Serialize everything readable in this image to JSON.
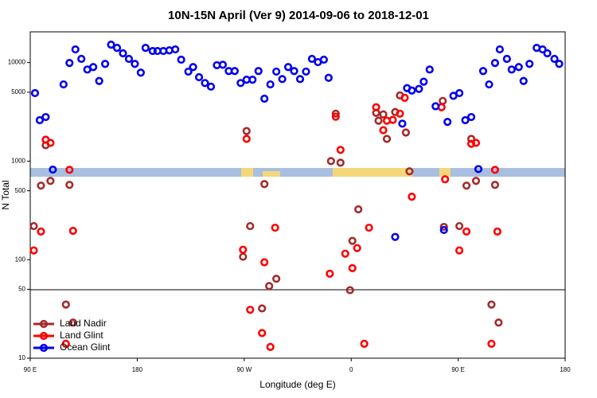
{
  "chart_data": {
    "type": "scatter",
    "title": "10N-15N April (Ver 9)   2014-09-06 to 2018-12-01",
    "xlabel": "Longitude (deg E)",
    "ylabel": "N Total",
    "log_y": true,
    "legend": "lower left",
    "xlim": [
      90,
      540
    ],
    "ylim": [
      10,
      20500
    ],
    "xticks": [
      {
        "value": 90,
        "label": "90 E"
      },
      180,
      {
        "value": 270,
        "label": "90 W"
      },
      {
        "value": 360,
        "label": "0"
      },
      {
        "value": 450,
        "label": "90 E"
      },
      {
        "value": 540,
        "label": "180"
      }
    ],
    "yticks": [
      10,
      50,
      100,
      500,
      1000,
      5000,
      10000
    ],
    "series": [
      {
        "name": "Land Nadir",
        "color": "#a52a2a",
        "x": [
          93,
          99,
          103,
          107,
          120,
          123,
          126,
          272,
          269,
          275,
          285,
          287,
          291,
          297,
          343,
          347,
          351,
          359,
          361,
          366,
          381,
          383,
          387,
          390,
          397,
          401,
          406,
          409,
          437,
          438,
          451,
          457,
          461,
          465,
          478,
          481,
          484
        ],
        "values": [
          219,
          564,
          1450,
          630,
          35,
          574,
          23,
          2020,
          107,
          219,
          32,
          585,
          54,
          64,
          1000,
          3030,
          964,
          49,
          155,
          324,
          3090,
          2570,
          2980,
          1680,
          3150,
          4640,
          1950,
          787,
          4080,
          215,
          219,
          564,
          1680,
          630,
          35,
          574,
          23
        ]
      },
      {
        "name": "Land Glint",
        "color": "#ff0000",
        "x": [
          93,
          99,
          103,
          107,
          120,
          123,
          126,
          272,
          269,
          275,
          285,
          287,
          292,
          296,
          342,
          347,
          351,
          355,
          361,
          365,
          371,
          375,
          381,
          387,
          390,
          395,
          401,
          405,
          411,
          436,
          439,
          451,
          457,
          461,
          465,
          478,
          481,
          483
        ],
        "values": [
          124,
          193,
          1650,
          1530,
          14,
          816,
          196,
          1680,
          126,
          31,
          18,
          94,
          13,
          211,
          72,
          2820,
          1300,
          115,
          82,
          131,
          14,
          211,
          3520,
          2060,
          2570,
          2620,
          3030,
          4390,
          435,
          3520,
          654,
          124,
          193,
          1500,
          1530,
          14,
          816,
          193
        ]
      },
      {
        "name": "Ocean Glint",
        "color": "#0000ee",
        "x": [
          94,
          98,
          103,
          109,
          118,
          123,
          128,
          133,
          138,
          143,
          148,
          153,
          158,
          163,
          168,
          173,
          178,
          183,
          187,
          193,
          197,
          202,
          207,
          212,
          217,
          223,
          227,
          232,
          237,
          242,
          247,
          252,
          257,
          262,
          267,
          272,
          277,
          282,
          287,
          292,
          297,
          302,
          307,
          312,
          317,
          322,
          327,
          332,
          337,
          341,
          397,
          403,
          407,
          411,
          417,
          421,
          426,
          431,
          438,
          441,
          446,
          451,
          456,
          461,
          467,
          471,
          476,
          481,
          485,
          491,
          495,
          501,
          505,
          510,
          516,
          521,
          525,
          531,
          535
        ],
        "values": [
          4900,
          2600,
          2800,
          820,
          6000,
          9900,
          13600,
          10900,
          8500,
          9000,
          6500,
          9700,
          15200,
          14100,
          12400,
          10900,
          9700,
          7900,
          14100,
          13100,
          13100,
          13100,
          13300,
          13600,
          10700,
          8100,
          9000,
          7100,
          6200,
          5700,
          9400,
          9500,
          8200,
          8200,
          6200,
          6700,
          6700,
          8200,
          4300,
          6000,
          8100,
          6800,
          9000,
          8200,
          6800,
          8100,
          10900,
          10100,
          10700,
          7000,
          170,
          2400,
          5500,
          5200,
          5400,
          6400,
          8500,
          3600,
          200,
          2500,
          4600,
          4900,
          2600,
          2800,
          830,
          8200,
          6000,
          9900,
          13600,
          10900,
          8500,
          9000,
          6500,
          9700,
          14100,
          13600,
          12400,
          10900,
          9700
        ]
      }
    ]
  }
}
